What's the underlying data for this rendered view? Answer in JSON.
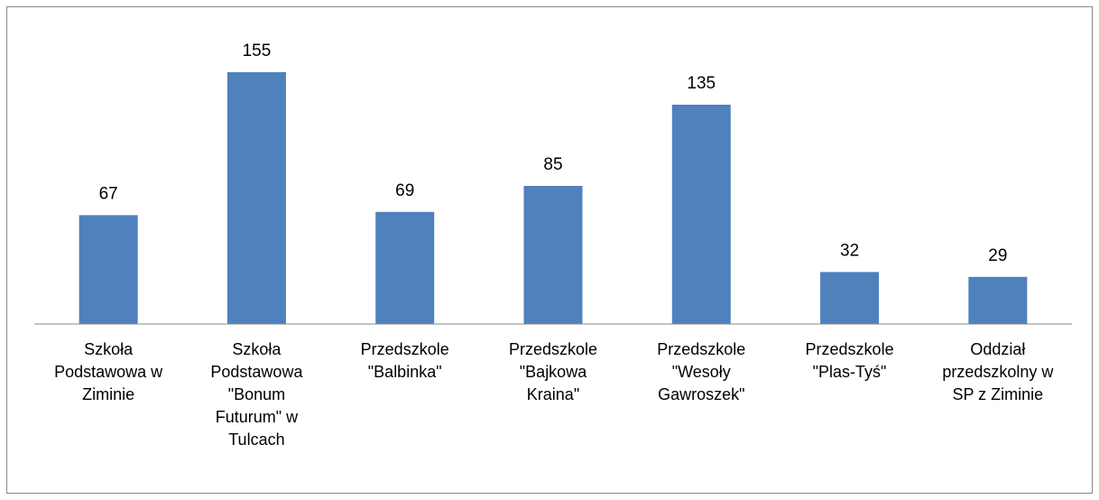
{
  "chart_data": {
    "type": "bar",
    "categories": [
      "Szkoła Podstawowa w Ziminie",
      "Szkoła Podstawowa \"Bonum Futurum\" w Tulcach",
      "Przedszkole \"Balbinka\"",
      "Przedszkole \"Bajkowa Kraina\"",
      "Przedszkole \"Wesoły Gawroszek\"",
      "Przedszkole \"Plas-Tyś\"",
      "Oddział przedszkolny w SP z Ziminie"
    ],
    "values": [
      67,
      155,
      69,
      85,
      135,
      32,
      29
    ],
    "color": "#4f81bd",
    "ylim": [
      0,
      180
    ]
  }
}
